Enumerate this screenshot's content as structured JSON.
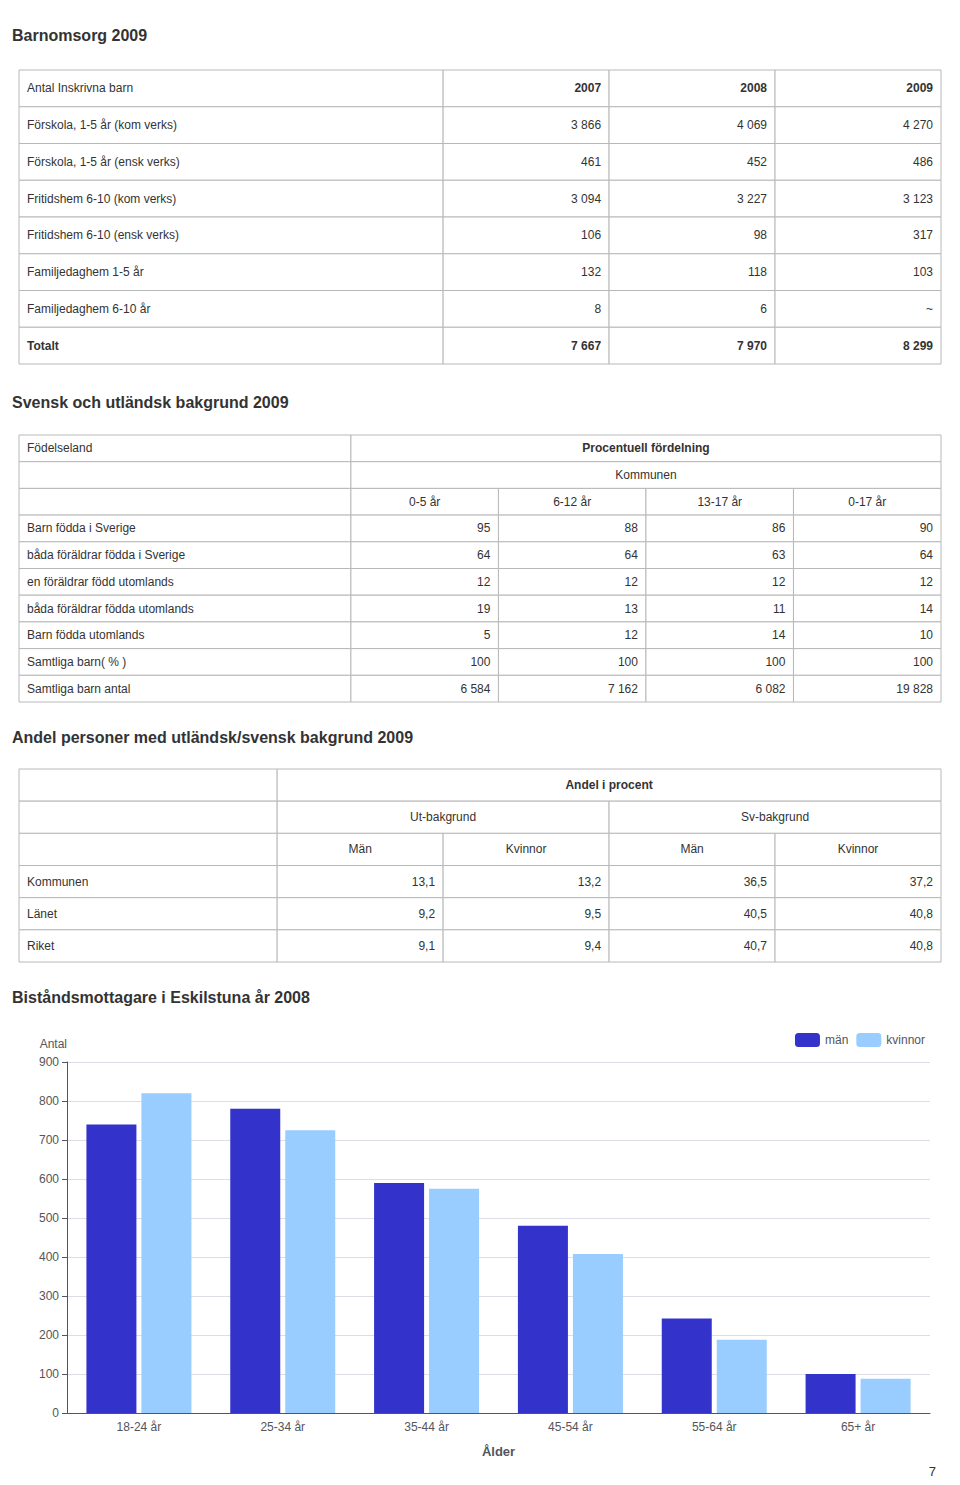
{
  "page_number": "7",
  "chart_data": [
    {
      "type": "table",
      "title": "Barnomsorg 2009",
      "columns": [
        "Antal Inskrivna barn",
        "2007",
        "2008",
        "2009"
      ],
      "rows": [
        [
          "Förskola, 1-5 år (kom verks)",
          "3 866",
          "4 069",
          "4 270"
        ],
        [
          "Förskola, 1-5 år (ensk verks)",
          "461",
          "452",
          "486"
        ],
        [
          "Fritidshem 6-10 (kom verks)",
          "3 094",
          "3 227",
          "3 123"
        ],
        [
          "Fritidshem 6-10 (ensk verks)",
          "106",
          "98",
          "317"
        ],
        [
          "Familjedaghem 1-5 år",
          "132",
          "118",
          "103"
        ],
        [
          "Familjedaghem 6-10 år",
          "8",
          "6",
          "~"
        ],
        [
          "Totalt",
          "7 667",
          "7 970",
          "8 299"
        ]
      ]
    },
    {
      "type": "table",
      "title": "Svensk och utländsk bakgrund 2009",
      "stub_header": "Födelseland",
      "group_header": "Procentuell fördelning",
      "subgroup_header": "Kommunen",
      "columns": [
        "0-5 år",
        "6-12 år",
        "13-17 år",
        "0-17 år"
      ],
      "rows": [
        [
          "Barn födda i Sverige",
          "95",
          "88",
          "86",
          "90"
        ],
        [
          "båda föräldrar födda i Sverige",
          "64",
          "64",
          "63",
          "64"
        ],
        [
          "en föräldrar född utomlands",
          "12",
          "12",
          "12",
          "12"
        ],
        [
          "båda föräldrar födda utomlands",
          "19",
          "13",
          "11",
          "14"
        ],
        [
          "Barn födda utomlands",
          "5",
          "12",
          "14",
          "10"
        ],
        [
          "Samtliga barn( % )",
          "100",
          "100",
          "100",
          "100"
        ],
        [
          "Samtliga barn antal",
          "6 584",
          "7 162",
          "6 082",
          "19 828"
        ]
      ]
    },
    {
      "type": "table",
      "title": "Andel personer med utländsk/svensk bakgrund 2009",
      "group_header": "Andel i procent",
      "column_groups": [
        {
          "name": "Ut-bakgrund",
          "columns": [
            "Män",
            "Kvinnor"
          ]
        },
        {
          "name": "Sv-bakgrund",
          "columns": [
            "Män",
            "Kvinnor"
          ]
        }
      ],
      "rows": [
        [
          "Kommunen",
          "13,1",
          "13,2",
          "36,5",
          "37,2"
        ],
        [
          "Länet",
          "9,2",
          "9,5",
          "40,5",
          "40,8"
        ],
        [
          "Riket",
          "9,1",
          "9,4",
          "40,7",
          "40,8"
        ]
      ]
    },
    {
      "type": "bar",
      "title": "Biståndsmottagare i Eskilstuna år 2008",
      "xlabel": "Ålder",
      "ylabel": "Antal",
      "categories": [
        "18-24 år",
        "25-34 år",
        "35-44 år",
        "45-54 år",
        "55-64 år",
        "65+ år"
      ],
      "series": [
        {
          "name": "män",
          "color": "#3333cc",
          "values": [
            740,
            780,
            590,
            480,
            242,
            100
          ]
        },
        {
          "name": "kvinnor",
          "color": "#99ccff",
          "values": [
            820,
            725,
            575,
            408,
            188,
            88
          ]
        }
      ],
      "ylim": [
        0,
        900
      ],
      "yticks": [
        0,
        100,
        200,
        300,
        400,
        500,
        600,
        700,
        800,
        900
      ],
      "grid": true,
      "legend": "upper right"
    }
  ]
}
